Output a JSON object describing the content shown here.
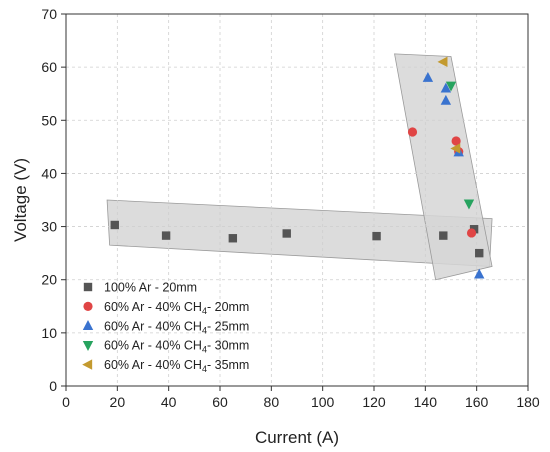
{
  "chart_data": {
    "type": "scatter",
    "xlabel": "Current (A)",
    "ylabel": "Voltage (V)",
    "xlim": [
      0,
      180
    ],
    "ylim": [
      0,
      70
    ],
    "xticks": [
      0,
      20,
      40,
      60,
      80,
      100,
      120,
      140,
      160,
      180
    ],
    "yticks": [
      0,
      10,
      20,
      30,
      40,
      50,
      60,
      70
    ],
    "grid": true,
    "legend_position": "bottom-left",
    "series": [
      {
        "name": "100% Ar - 20mm",
        "name_parts": {
          "pre": "100% Ar - 20mm",
          "sub": "",
          "post": ""
        },
        "marker": "square",
        "color": "#555555",
        "points": [
          [
            19,
            30.3
          ],
          [
            39,
            28.3
          ],
          [
            65,
            27.8
          ],
          [
            86,
            28.7
          ],
          [
            121,
            28.2
          ],
          [
            147,
            28.3
          ],
          [
            159,
            29.5
          ],
          [
            161,
            25
          ]
        ]
      },
      {
        "name": "60% Ar - 40% CH4- 20mm",
        "name_parts": {
          "pre": "60% Ar - 40% CH",
          "sub": "4",
          "post": "- 20mm"
        },
        "marker": "circle",
        "color": "#e04545",
        "points": [
          [
            135,
            47.8
          ],
          [
            152,
            46.1
          ],
          [
            153,
            44.1
          ],
          [
            158,
            28.8
          ]
        ]
      },
      {
        "name": "60% Ar - 40% CH4- 25mm",
        "name_parts": {
          "pre": "60% Ar - 40% CH",
          "sub": "4",
          "post": "- 25mm"
        },
        "marker": "triangle-up",
        "color": "#3a73cf",
        "points": [
          [
            141,
            58
          ],
          [
            148,
            56
          ],
          [
            148,
            53.7
          ],
          [
            153,
            44
          ],
          [
            161,
            21
          ]
        ]
      },
      {
        "name": "60% Ar - 40% CH4- 30mm",
        "name_parts": {
          "pre": "60% Ar - 40% CH",
          "sub": "4",
          "post": "- 30mm"
        },
        "marker": "triangle-down",
        "color": "#27a35f",
        "points": [
          [
            150,
            56.5
          ],
          [
            157,
            34.3
          ]
        ]
      },
      {
        "name": "60% Ar - 40% CH4- 35mm",
        "name_parts": {
          "pre": "60% Ar - 40% CH",
          "sub": "4",
          "post": "- 35mm"
        },
        "marker": "triangle-left",
        "color": "#c39a2f",
        "points": [
          [
            147,
            61
          ],
          [
            152,
            44.7
          ]
        ]
      }
    ],
    "regions": [
      {
        "shape": "band",
        "fill": "#d6d6d6",
        "polygon": [
          [
            16,
            35
          ],
          [
            166,
            31.5
          ],
          [
            165,
            22.5
          ],
          [
            17,
            26.5
          ]
        ]
      },
      {
        "shape": "band",
        "fill": "#d6d6d6",
        "polygon": [
          [
            128,
            62.5
          ],
          [
            150,
            62
          ],
          [
            166,
            22.5
          ],
          [
            144,
            20
          ]
        ]
      }
    ]
  }
}
